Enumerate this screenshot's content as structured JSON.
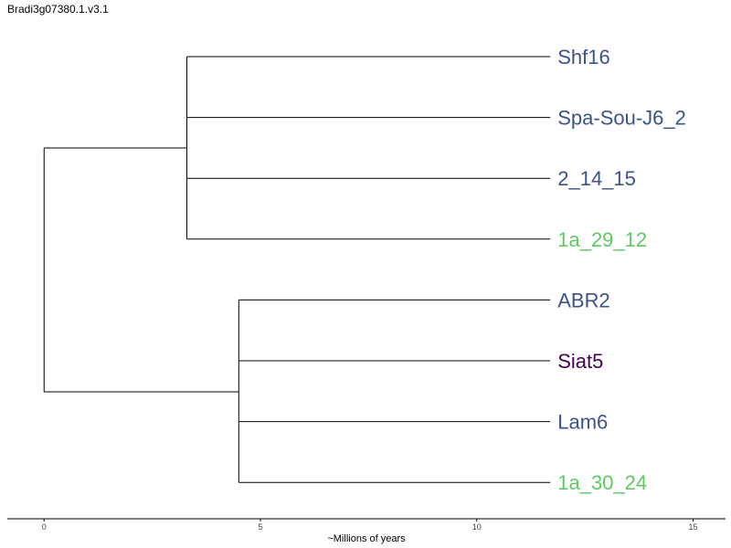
{
  "title": "Bradi3g07380.1.v3.1",
  "axis": {
    "label": "~Millions of years",
    "ticks": [
      0,
      5,
      10,
      15
    ],
    "range": [
      -0.85,
      15.75
    ]
  },
  "tree": {
    "root": {
      "x": 0
    },
    "clades": [
      {
        "id": "upper",
        "node_x": 3.3,
        "tips": [
          {
            "name": "Shf16",
            "color": "#3b528b"
          },
          {
            "name": "Spa-Sou-J6_2",
            "color": "#3b528b"
          },
          {
            "name": "2_14_15",
            "color": "#3b528b"
          },
          {
            "name": "1a_29_12",
            "color": "#5ec962"
          }
        ]
      },
      {
        "id": "lower",
        "node_x": 4.5,
        "tips": [
          {
            "name": "ABR2",
            "color": "#3b528b"
          },
          {
            "name": "Siat5",
            "color": "#440154"
          },
          {
            "name": "Lam6",
            "color": "#3b528b"
          },
          {
            "name": "1a_30_24",
            "color": "#5ec962"
          }
        ]
      }
    ],
    "tip_x": 11.7
  }
}
